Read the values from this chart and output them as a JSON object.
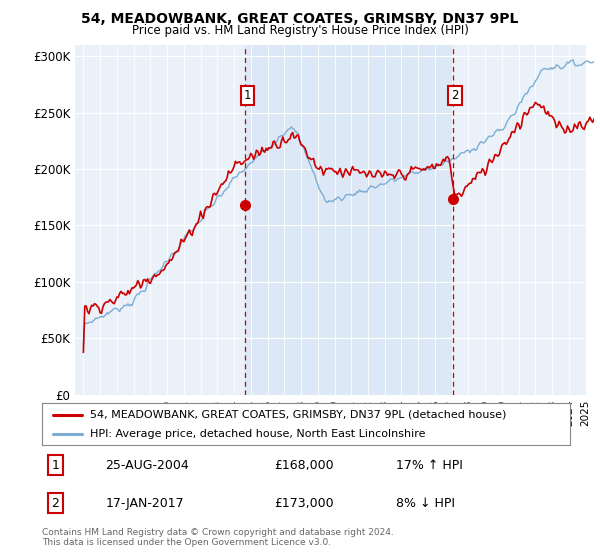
{
  "title": "54, MEADOWBANK, GREAT COATES, GRIMSBY, DN37 9PL",
  "subtitle": "Price paid vs. HM Land Registry's House Price Index (HPI)",
  "ylim": [
    0,
    310000
  ],
  "yticks": [
    0,
    50000,
    100000,
    150000,
    200000,
    250000,
    300000
  ],
  "ytick_labels": [
    "£0",
    "£50K",
    "£100K",
    "£150K",
    "£200K",
    "£250K",
    "£300K"
  ],
  "xlim_start": 1994.5,
  "xlim_end": 2025.5,
  "red_color": "#cc0000",
  "blue_color": "#7dadd4",
  "shade_color": "#dce8f5",
  "marker1_x": 2004.65,
  "marker1_y": 168000,
  "marker2_x": 2017.05,
  "marker2_y": 173000,
  "legend_line1": "54, MEADOWBANK, GREAT COATES, GRIMSBY, DN37 9PL (detached house)",
  "legend_line2": "HPI: Average price, detached house, North East Lincolnshire",
  "marker1_date": "25-AUG-2004",
  "marker1_price": "£168,000",
  "marker1_hpi": "17% ↑ HPI",
  "marker2_date": "17-JAN-2017",
  "marker2_price": "£173,000",
  "marker2_hpi": "8% ↓ HPI",
  "footer": "Contains HM Land Registry data © Crown copyright and database right 2024.\nThis data is licensed under the Open Government Licence v3.0.",
  "background_color": "#eaf1f8"
}
